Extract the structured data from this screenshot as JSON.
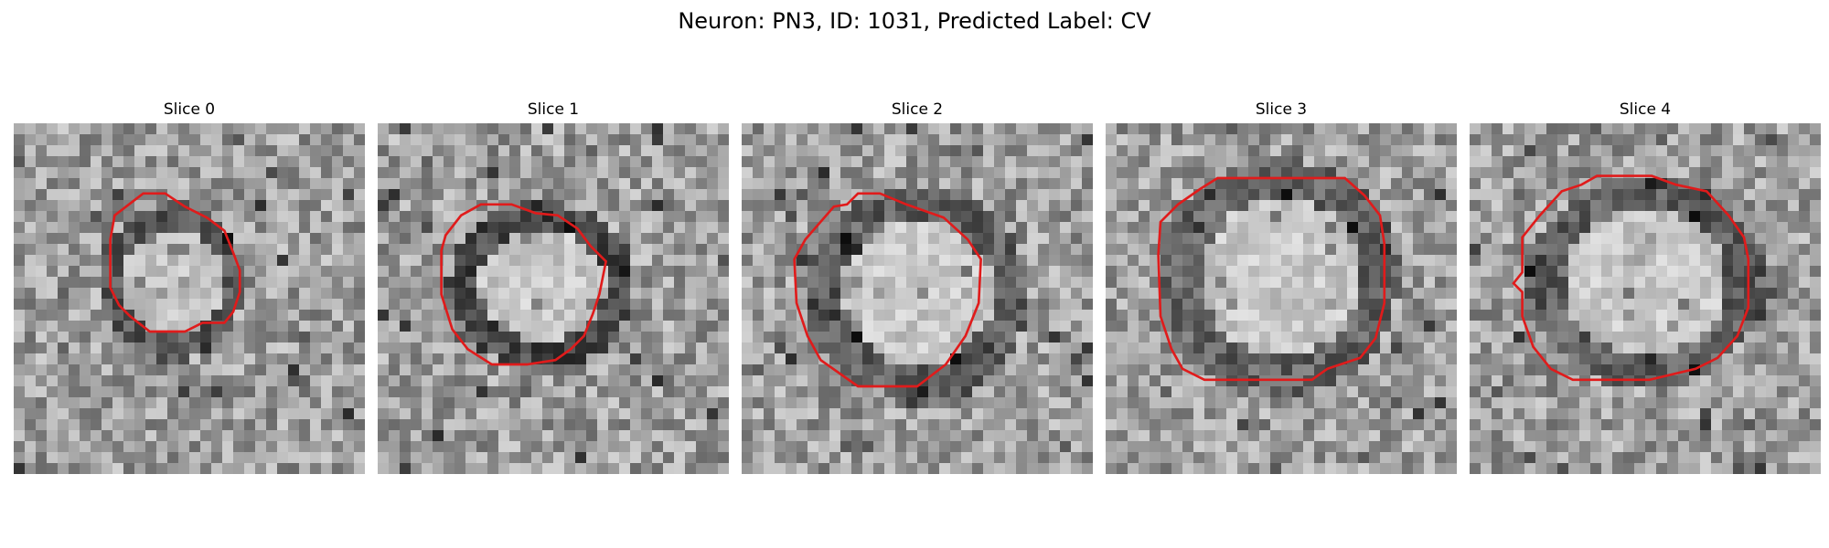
{
  "figure": {
    "title": "Neuron: PN3, ID: 1031, Predicted Label: CV"
  },
  "panels": [
    {
      "title": "Slice 0",
      "contour_color": "#e01b1b"
    },
    {
      "title": "Slice 1",
      "contour_color": "#e01b1b"
    },
    {
      "title": "Slice 2",
      "contour_color": "#e01b1b"
    },
    {
      "title": "Slice 3",
      "contour_color": "#e01b1b"
    },
    {
      "title": "Slice 4",
      "contour_color": "#e01b1b"
    }
  ],
  "image_style": {
    "colormap": "grayscale",
    "grid": "32x32 pixel tiles"
  }
}
